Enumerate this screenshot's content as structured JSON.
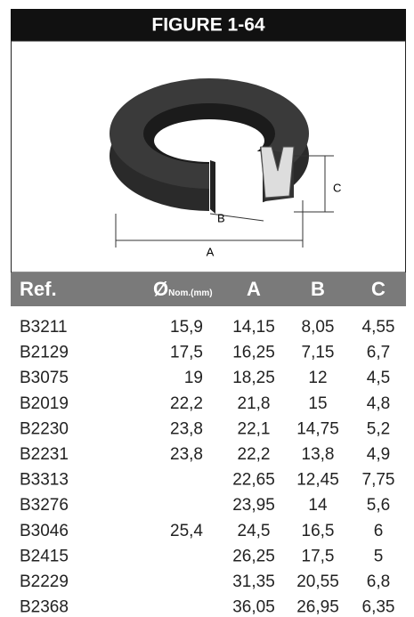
{
  "header": {
    "title": "FIGURE 1-64"
  },
  "figure": {
    "labels": {
      "a": "A",
      "b": "B",
      "c": "C"
    }
  },
  "table": {
    "columns": [
      {
        "text": "Ref."
      },
      {
        "text": "Ø",
        "sub": "Nom.(mm)"
      },
      {
        "text": "A"
      },
      {
        "text": "B"
      },
      {
        "text": "C"
      }
    ],
    "rows": [
      [
        "B3211",
        "15,9",
        "14,15",
        "8,05",
        "4,55"
      ],
      [
        "B2129",
        "17,5",
        "16,25",
        "7,15",
        "6,7"
      ],
      [
        "B3075",
        "19",
        "18,25",
        "12",
        "4,5"
      ],
      [
        "B2019",
        "22,2",
        "21,8",
        "15",
        "4,8"
      ],
      [
        "B2230",
        "23,8",
        "22,1",
        "14,75",
        "5,2"
      ],
      [
        "B2231",
        "23,8",
        "22,2",
        "13,8",
        "4,9"
      ],
      [
        "B3313",
        null,
        "22,65",
        "12,45",
        "7,75"
      ],
      [
        "B3276",
        null,
        "23,95",
        "14",
        "5,6"
      ],
      [
        "B3046",
        "25,4",
        "24,5",
        "16,5",
        "6"
      ],
      [
        "B2415",
        null,
        "26,25",
        "17,5",
        "5"
      ],
      [
        "B2229",
        null,
        "31,35",
        "20,55",
        "6,8"
      ],
      [
        "B2368",
        null,
        "36,05",
        "26,95",
        "6,35"
      ]
    ]
  }
}
